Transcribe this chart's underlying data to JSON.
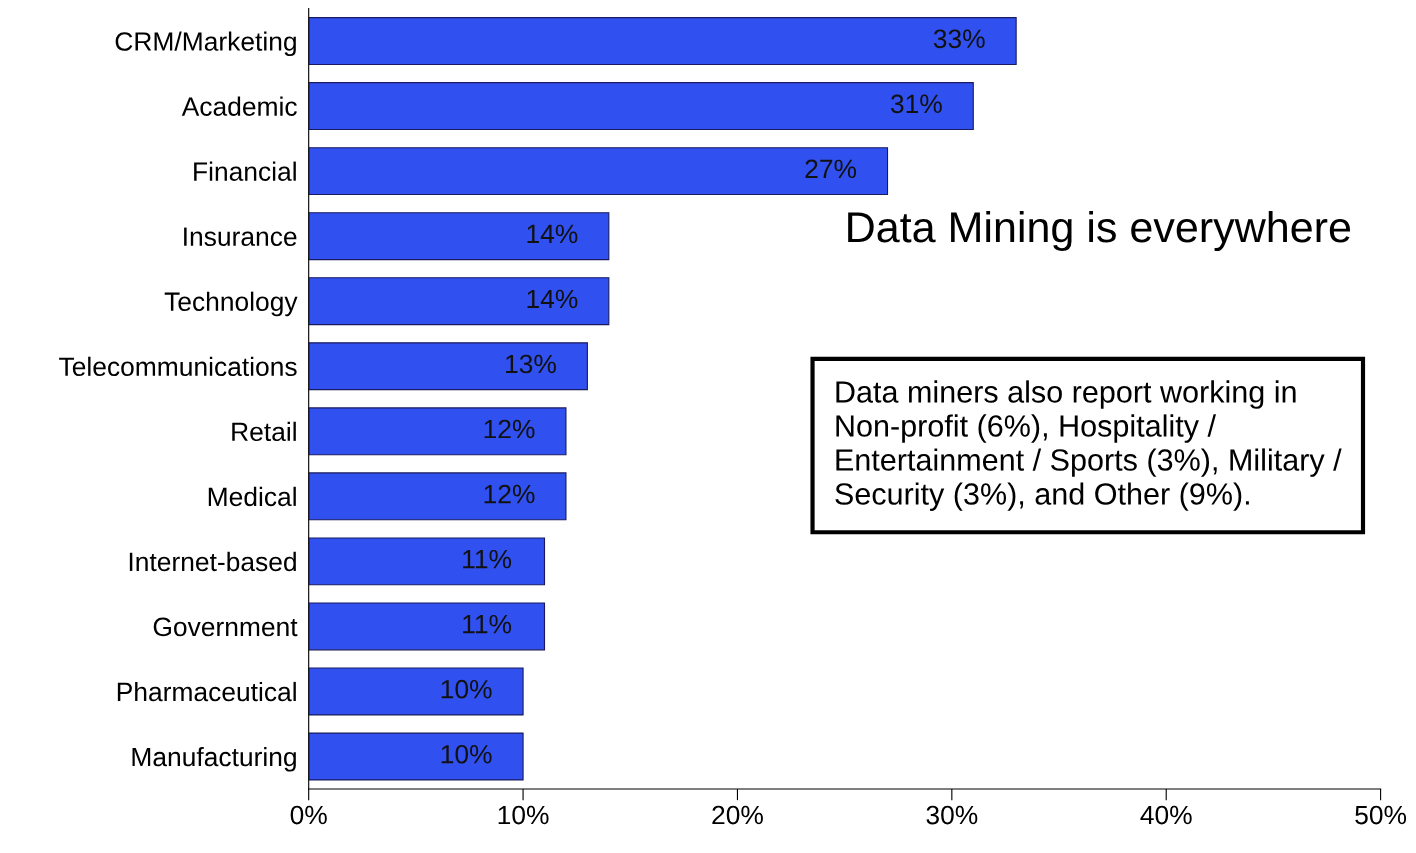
{
  "chart_data": {
    "type": "bar",
    "orientation": "horizontal",
    "title": "Data Mining is everywhere",
    "categories": [
      "CRM/Marketing",
      "Academic",
      "Financial",
      "Insurance",
      "Technology",
      "Telecommunications",
      "Retail",
      "Medical",
      "Internet-based",
      "Government",
      "Pharmaceutical",
      "Manufacturing"
    ],
    "values": [
      33,
      31,
      27,
      14,
      14,
      13,
      12,
      12,
      11,
      11,
      10,
      10
    ],
    "value_labels": [
      "33%",
      "31%",
      "27%",
      "14%",
      "14%",
      "13%",
      "12%",
      "12%",
      "11%",
      "11%",
      "10%",
      "10%"
    ],
    "color": "#3050f0",
    "xlim": [
      0,
      50
    ],
    "xticks": [
      {
        "value": 0,
        "label": "0%"
      },
      {
        "value": 10,
        "label": "10%"
      },
      {
        "value": 20,
        "label": "20%"
      },
      {
        "value": 30,
        "label": "30%"
      },
      {
        "value": 40,
        "label": "40%"
      },
      {
        "value": 50,
        "label": "50%"
      }
    ],
    "annotations": [
      "Data miners also report working in\nNon-profit (6%), Hospitality /\nEntertainment / Sports (3%), Military /\nSecurity (3%), and Other (9%)."
    ],
    "grid": false,
    "legend": false
  }
}
